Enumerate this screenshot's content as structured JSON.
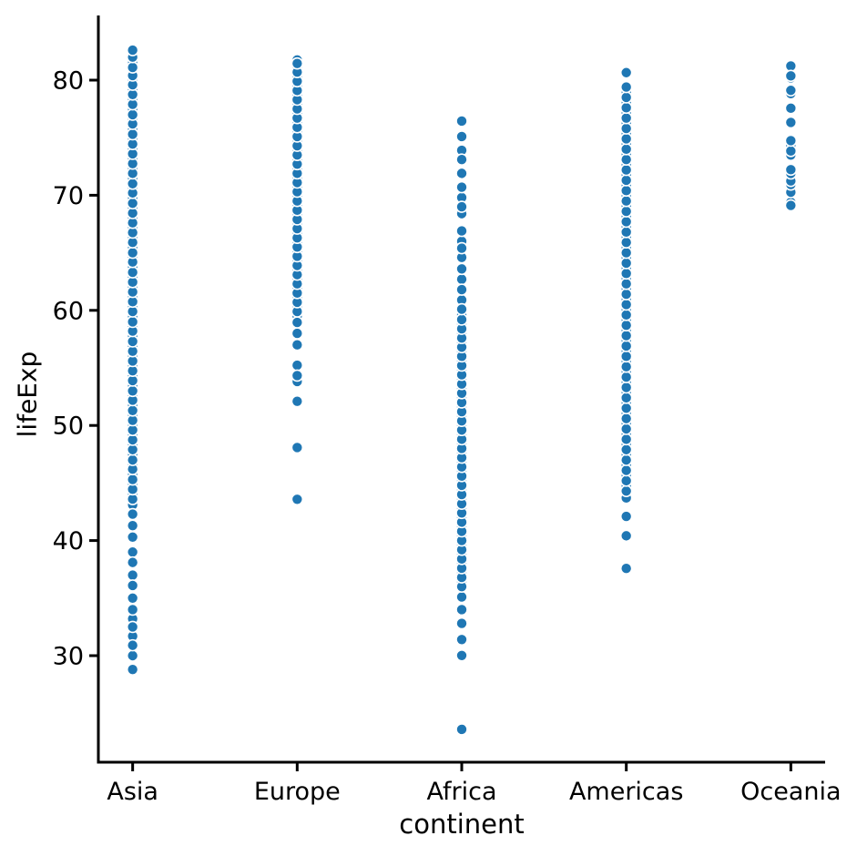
{
  "chart_data": {
    "type": "scatter",
    "title": "",
    "xlabel": "continent",
    "ylabel": "lifeExp",
    "categories": [
      "Asia",
      "Europe",
      "Africa",
      "Americas",
      "Oceania"
    ],
    "y_ticks": [
      30,
      40,
      50,
      60,
      70,
      80
    ],
    "ylim": [
      20.7,
      85.6
    ],
    "grid": false,
    "legend": "none",
    "marker_color": "#1f77b4",
    "marker_edge_color": "#ffffff",
    "series": [
      {
        "name": "Asia",
        "values": [
          28.801,
          30.0,
          30.9,
          31.7,
          32.5,
          33.2,
          34.0,
          35.0,
          36.1,
          37.0,
          38.1,
          39.0,
          40.3,
          41.3,
          42.3,
          43.1,
          43.6,
          44.0,
          44.45,
          44.9,
          45.3,
          45.75,
          46.2,
          46.6,
          47.0,
          47.45,
          47.9,
          48.3,
          48.75,
          49.2,
          49.6,
          50.0,
          50.45,
          50.9,
          51.3,
          51.75,
          52.2,
          52.6,
          53.0,
          53.45,
          53.9,
          54.3,
          54.75,
          55.2,
          55.6,
          56.0,
          56.45,
          56.9,
          57.3,
          57.75,
          58.2,
          58.6,
          59.0,
          59.45,
          59.9,
          60.3,
          60.75,
          61.2,
          61.6,
          62.0,
          62.45,
          62.9,
          63.3,
          63.75,
          64.2,
          64.6,
          65.0,
          65.45,
          65.9,
          66.3,
          66.75,
          67.2,
          67.6,
          68.0,
          68.45,
          68.9,
          69.3,
          69.75,
          70.2,
          70.6,
          71.0,
          71.45,
          71.9,
          72.3,
          72.75,
          73.2,
          73.6,
          74.0,
          74.45,
          74.9,
          75.3,
          75.75,
          76.2,
          76.6,
          77.0,
          77.45,
          77.9,
          78.3,
          78.75,
          79.2,
          79.6,
          80.0,
          80.4,
          80.745,
          81.1,
          81.495,
          82.0,
          82.208,
          82.603
        ]
      },
      {
        "name": "Europe",
        "values": [
          43.585,
          48.079,
          52.098,
          53.82,
          54.336,
          55.23,
          57.005,
          58.0,
          58.95,
          59.5,
          59.9,
          60.3,
          60.7,
          61.1,
          61.5,
          61.9,
          62.3,
          62.7,
          63.1,
          63.5,
          63.9,
          64.3,
          64.7,
          65.1,
          65.5,
          65.9,
          66.3,
          66.7,
          67.1,
          67.5,
          67.9,
          68.3,
          68.7,
          69.1,
          69.5,
          69.9,
          70.3,
          70.7,
          71.1,
          71.5,
          71.9,
          72.3,
          72.7,
          73.1,
          73.5,
          73.9,
          74.3,
          74.7,
          75.1,
          75.5,
          75.9,
          76.3,
          76.7,
          77.1,
          77.5,
          77.9,
          78.3,
          78.7,
          79.1,
          79.5,
          79.9,
          80.3,
          80.7,
          81.1,
          81.45,
          81.757
        ]
      },
      {
        "name": "Africa",
        "values": [
          23.599,
          30.015,
          31.4,
          32.8,
          34.0,
          35.1,
          36.0,
          36.4,
          36.8,
          37.2,
          37.6,
          38.0,
          38.4,
          38.8,
          39.2,
          39.6,
          40.0,
          40.4,
          40.8,
          41.2,
          41.6,
          42.0,
          42.4,
          42.8,
          43.2,
          43.6,
          44.0,
          44.4,
          44.8,
          45.2,
          45.6,
          46.0,
          46.4,
          46.8,
          47.2,
          47.6,
          48.0,
          48.4,
          48.8,
          49.2,
          49.6,
          50.0,
          50.4,
          50.8,
          51.2,
          51.6,
          52.0,
          52.4,
          52.8,
          53.2,
          53.6,
          54.0,
          54.4,
          54.8,
          55.2,
          55.6,
          56.0,
          56.4,
          56.8,
          57.2,
          57.6,
          58.0,
          58.4,
          58.8,
          59.2,
          59.6,
          60.1,
          60.9,
          61.8,
          62.7,
          63.6,
          64.6,
          65.4,
          66.0,
          66.9,
          68.4,
          69.0,
          69.8,
          70.7,
          71.9,
          73.1,
          73.9,
          75.1,
          76.442
        ]
      },
      {
        "name": "Americas",
        "values": [
          37.579,
          40.414,
          42.1,
          43.7,
          44.3,
          44.75,
          45.2,
          45.65,
          46.1,
          46.55,
          47.0,
          47.45,
          47.9,
          48.35,
          48.8,
          49.25,
          49.7,
          50.15,
          50.6,
          51.05,
          51.5,
          51.95,
          52.4,
          52.85,
          53.3,
          53.75,
          54.2,
          54.65,
          55.1,
          55.55,
          56.0,
          56.45,
          56.9,
          57.35,
          57.8,
          58.25,
          58.7,
          59.15,
          59.6,
          60.05,
          60.5,
          60.95,
          61.4,
          61.85,
          62.3,
          62.75,
          63.2,
          63.65,
          64.1,
          64.55,
          65.0,
          65.45,
          65.9,
          66.35,
          66.8,
          67.25,
          67.7,
          68.15,
          68.6,
          69.05,
          69.5,
          69.95,
          70.4,
          70.85,
          71.3,
          71.75,
          72.2,
          72.65,
          73.1,
          73.55,
          74.0,
          74.45,
          74.9,
          75.35,
          75.8,
          76.25,
          76.7,
          77.15,
          77.6,
          78.05,
          78.5,
          78.9,
          79.4,
          80.653
        ]
      },
      {
        "name": "Oceania",
        "values": [
          69.12,
          69.39,
          70.26,
          70.33,
          70.93,
          71.1,
          71.24,
          71.52,
          71.89,
          71.93,
          72.22,
          73.49,
          73.84,
          74.32,
          74.74,
          76.32,
          76.33,
          77.55,
          77.56,
          78.83,
          79.11,
          80.204,
          80.37,
          81.235
        ]
      }
    ]
  }
}
